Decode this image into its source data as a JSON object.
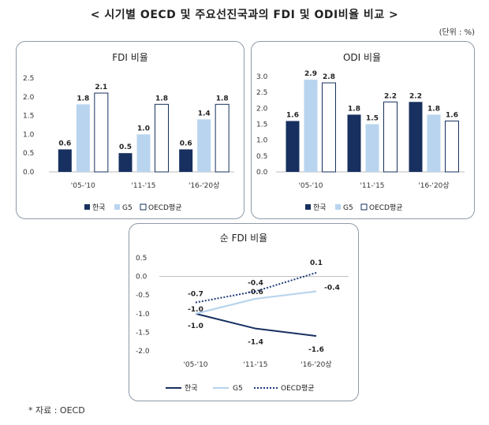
{
  "page": {
    "title": "< 시기별 OECD 및 주요선진국과의 FDI 및 ODI비율 비교 >",
    "unit": "(단위 : %)",
    "source": "* 자료 : OECD"
  },
  "colors": {
    "korea": "#17305f",
    "g5": "#b9d4ee",
    "oecd": "#ffffff",
    "oecd_stroke": "#17305f",
    "net_g5": "#b9d4ee",
    "net_oecd": "#1f3a7a"
  },
  "chart_data": [
    {
      "id": "fdi",
      "type": "bar",
      "title": "FDI 비율",
      "categories": [
        "'05-'10",
        "'11-'15",
        "'16-'20상"
      ],
      "yticks": [
        "2.5",
        "2.0",
        "1.5",
        "1.0",
        "0.5",
        "0.0"
      ],
      "ylim": [
        0,
        2.5
      ],
      "legend": [
        "한국",
        "G5",
        "OECD평균"
      ],
      "series": [
        {
          "name": "한국",
          "values": [
            0.6,
            0.5,
            0.6
          ],
          "labels": [
            "0.6",
            "0.5",
            "0.6"
          ]
        },
        {
          "name": "G5",
          "values": [
            1.8,
            1.0,
            1.4
          ],
          "labels": [
            "1.8",
            "1.0",
            "1.4"
          ]
        },
        {
          "name": "OECD평균",
          "values": [
            2.1,
            1.8,
            1.8
          ],
          "labels": [
            "2.1",
            "1.8",
            "1.8"
          ]
        }
      ]
    },
    {
      "id": "odi",
      "type": "bar",
      "title": "ODI 비율",
      "categories": [
        "'05-'10",
        "'11-'15",
        "'16-'20상"
      ],
      "yticks": [
        "3.0",
        "2.5",
        "2.0",
        "1.5",
        "1.0",
        "0.5",
        "0.0"
      ],
      "ylim": [
        0,
        3.0
      ],
      "legend": [
        "한국",
        "G5",
        "OECD평균"
      ],
      "series": [
        {
          "name": "한국",
          "values": [
            1.6,
            1.8,
            2.2
          ],
          "labels": [
            "1.6",
            "1.8",
            "2.2"
          ]
        },
        {
          "name": "G5",
          "values": [
            2.9,
            1.5,
            1.8
          ],
          "labels": [
            "2.9",
            "1.5",
            "1.8"
          ]
        },
        {
          "name": "OECD평균",
          "values": [
            2.8,
            2.2,
            1.6
          ],
          "labels": [
            "2.8",
            "2.2",
            "1.6"
          ]
        }
      ]
    },
    {
      "id": "net",
      "type": "line",
      "title": "순 FDI 비율",
      "categories": [
        "'05-'10",
        "'11-'15",
        "'16-'20상"
      ],
      "yticks": [
        "0.5",
        "0.0",
        "-0.5",
        "-1.0",
        "-1.5",
        "-2.0"
      ],
      "ylim": [
        -2.0,
        0.5
      ],
      "legend": [
        "한국",
        "G5",
        "OECD평균"
      ],
      "series": [
        {
          "name": "한국",
          "values": [
            -1.0,
            -1.4,
            -1.6
          ],
          "labels": [
            "-1.0",
            "-1.4",
            "-1.6"
          ]
        },
        {
          "name": "G5",
          "values": [
            -1.0,
            -0.6,
            -0.4
          ],
          "labels": [
            "-1.0",
            "-0.6",
            "-0.4"
          ]
        },
        {
          "name": "OECD평균",
          "values": [
            -0.7,
            -0.4,
            0.1
          ],
          "labels": [
            "-0.7",
            "-0.4",
            "0.1"
          ]
        }
      ]
    }
  ]
}
